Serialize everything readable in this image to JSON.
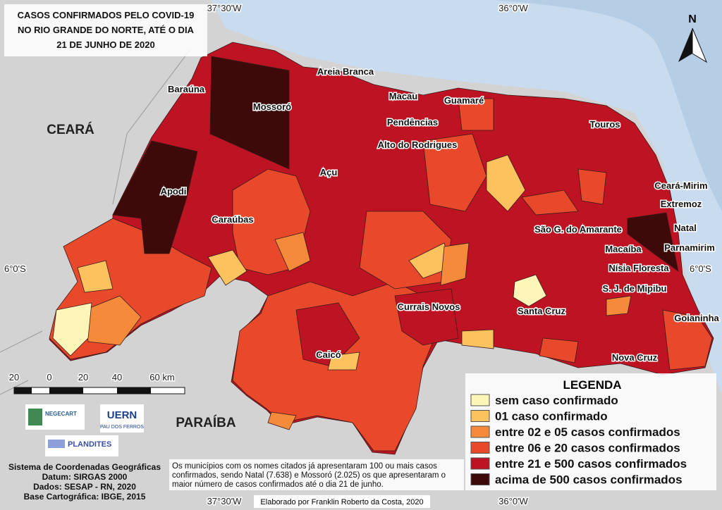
{
  "title": [
    "CASOS CONFIRMADOS PELO COVID-19",
    "NO RIO GRANDE DO NORTE, ATÉ O DIA",
    "21 DE JUNHO DE 2020"
  ],
  "coordinates": {
    "top_left": "37°30'W",
    "top_right": "36°0'W",
    "bottom_left": "37°30'W",
    "bottom_right": "36°0'W",
    "left": "6°0'S",
    "right": "6°0'S"
  },
  "north": "N",
  "states": {
    "ceara": "CEARÁ",
    "paraiba": "PARAÍBA"
  },
  "municipalities": [
    "Areia Branca",
    "Baraúna",
    "Mossoró",
    "Macau",
    "Guamaré",
    "Pendências",
    "Touros",
    "Alto do Rodrigues",
    "Açu",
    "Apodi",
    "Ceará-Mirim",
    "Extremoz",
    "Caraúbas",
    "São G. do Amarante",
    "Natal",
    "Macaíba",
    "Parnamirim",
    "Nísia Floresta",
    "S. J. de Mipibu",
    "Currais Novos",
    "Santa Cruz",
    "Goianinha",
    "Caicó",
    "Nova Cruz"
  ],
  "scale": [
    "20",
    "0",
    "20",
    "40",
    "60 km"
  ],
  "logos": {
    "negecart": "NEGECART",
    "uern": "UERN",
    "uern_sub": "PAU DOS FERROS",
    "plandites": "PLANDITES"
  },
  "info": [
    "Sistema de Coordenadas Geográficas",
    "Datum: SIRGAS 2000",
    "Dados: SESAP - RN, 2020",
    "Base Cartográfica: IBGE, 2015"
  ],
  "note": [
    "Os municípios com os nomes citados já apresentaram 100 ou mais casos",
    "confirmados, sendo Natal (7.638) e Mossoró (2.025) os que apresentaram o",
    "maior número de casos confirmados até o dia 21 de junho."
  ],
  "credit": "Elaborado por Franklin Roberto da Costa, 2020",
  "legend": {
    "title": "LEGENDA",
    "items": [
      {
        "label": "sem caso confirmado",
        "color": "#fdf6b8"
      },
      {
        "label": "01 caso confirmado",
        "color": "#fcc25e"
      },
      {
        "label": "entre 02 e 05 casos confirmados",
        "color": "#f58a3a"
      },
      {
        "label": "entre 06 e 20 casos confirmados",
        "color": "#e8492a"
      },
      {
        "label": "entre 21 e 500 casos confirmados",
        "color": "#bd1322"
      },
      {
        "label": "acima de 500 casos confirmados",
        "color": "#3d0909"
      }
    ]
  }
}
